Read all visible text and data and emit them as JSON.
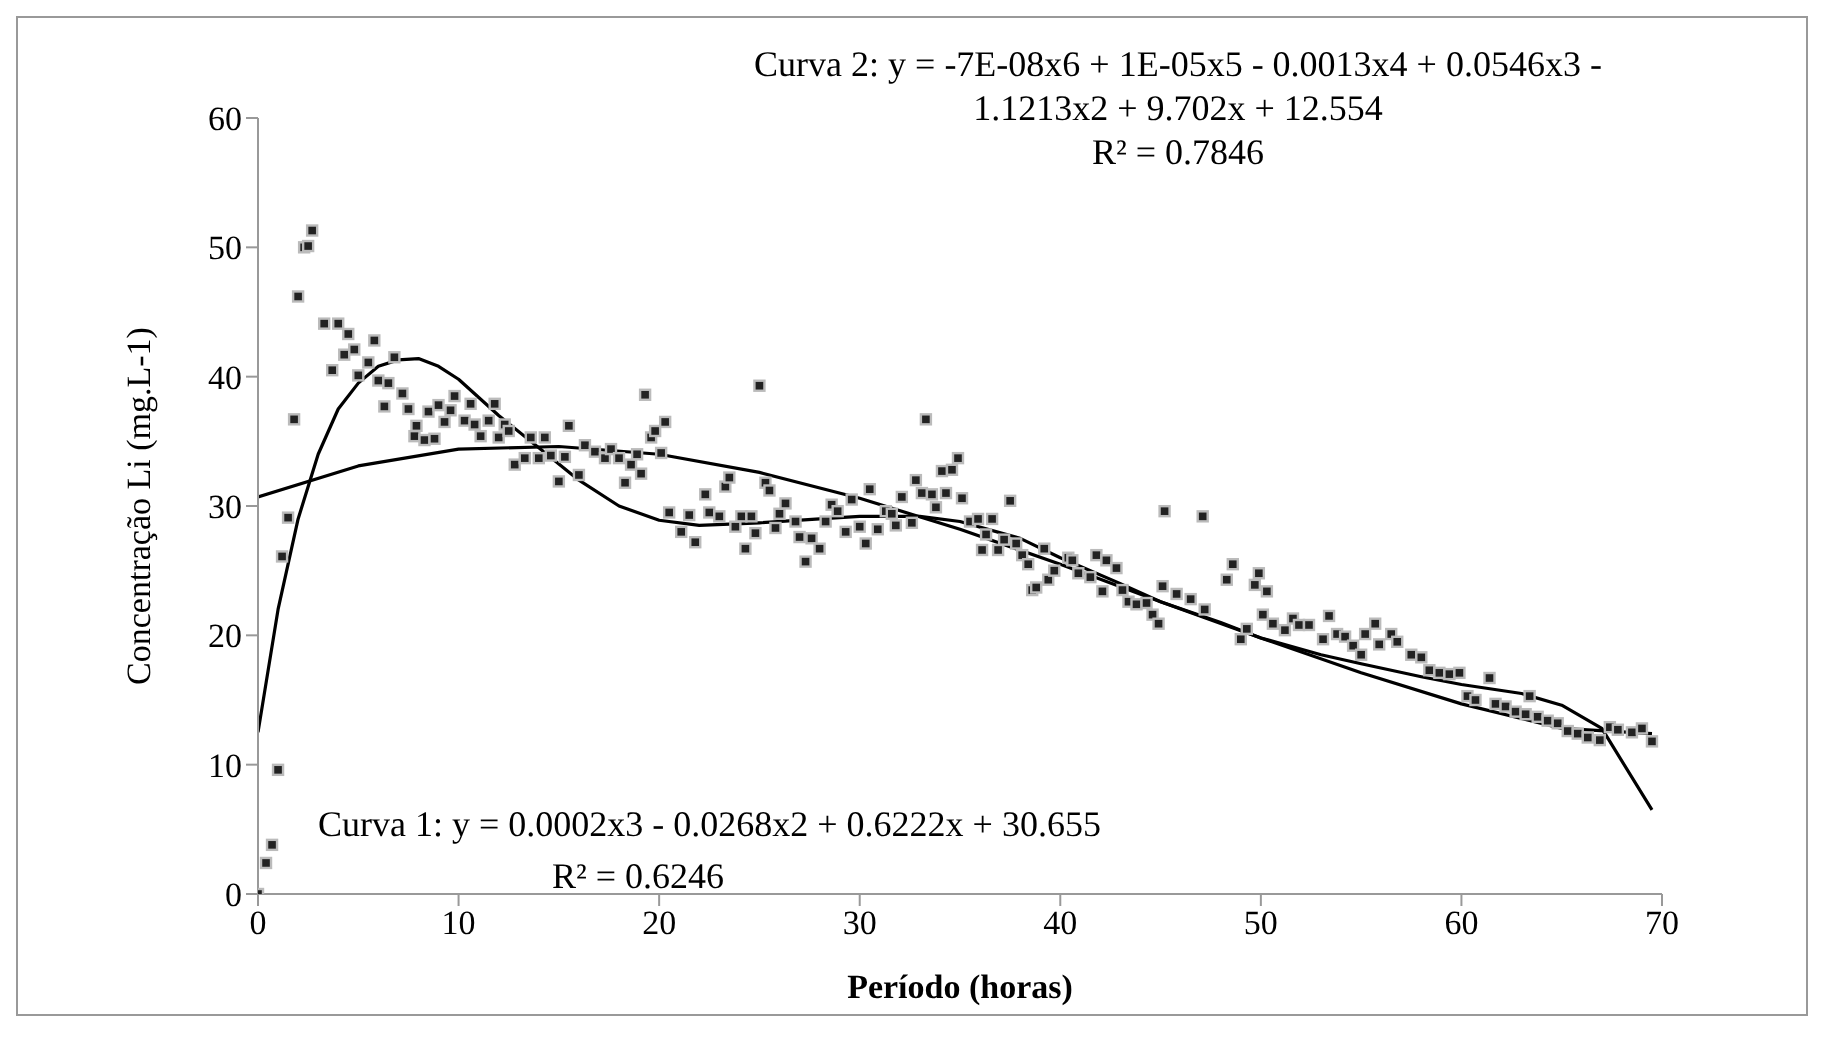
{
  "chart_data": {
    "type": "scatter",
    "xlabel": "Período (horas)",
    "ylabel": "Concentração Li (mg.L-1)",
    "xlim": [
      0,
      70
    ],
    "xticks": [
      0,
      10,
      20,
      30,
      40,
      50,
      60,
      70
    ],
    "ylim": [
      0,
      60
    ],
    "yticks": [
      0,
      10,
      20,
      30,
      40,
      50,
      60
    ],
    "grid": false,
    "legend": false,
    "annotations": [
      "Curva 2: y = -7E-08x6 + 1E-05x5 - 0.0013x4 + 0.0546x3 - 1.1213x2 + 9.702x + 12.554",
      "R² = 0.7846",
      "Curva 1: y = 0.0002x3 - 0.0268x2 + 0.6222x + 30.655",
      "R² = 0.6246"
    ],
    "series": [
      {
        "marker": "square",
        "color": "#222222",
        "x": [
          0,
          0.4,
          0.7,
          1.0,
          1.2,
          1.5,
          1.8,
          2.0,
          2.3,
          2.5,
          2.7,
          3.3,
          4.0,
          3.7,
          4.3,
          4.5,
          4.8,
          5.0,
          5.5,
          5.8,
          6.0,
          6.3,
          6.5,
          6.8,
          7.2,
          7.5,
          7.8,
          7.9,
          8.3,
          8.5,
          8.8,
          9.0,
          9.3,
          9.6,
          9.8,
          10.3,
          10.6,
          10.8,
          11.1,
          11.5,
          11.8,
          12.0,
          12.3,
          12.5,
          12.8,
          13.3,
          13.6,
          14.0,
          14.3,
          14.6,
          15.0,
          15.3,
          15.5,
          16.0,
          16.3,
          16.8,
          17.3,
          17.6,
          18.0,
          18.3,
          18.6,
          18.9,
          19.1,
          19.3,
          19.6,
          19.8,
          20.3,
          20.1,
          20.5,
          21.1,
          21.5,
          21.8,
          22.3,
          22.5,
          23.0,
          23.3,
          23.5,
          23.8,
          24.1,
          24.3,
          24.6,
          24.8,
          25.0,
          25.3,
          25.5,
          25.8,
          26.0,
          26.3,
          26.8,
          27.0,
          27.3,
          27.6,
          28.0,
          28.3,
          28.6,
          28.9,
          29.3,
          29.6,
          30.0,
          30.3,
          30.5,
          30.9,
          31.3,
          31.6,
          31.8,
          32.1,
          32.6,
          32.8,
          33.1,
          33.3,
          33.6,
          33.8,
          34.1,
          34.3,
          34.6,
          34.9,
          35.1,
          35.5,
          35.9,
          36.1,
          36.3,
          36.6,
          36.9,
          37.2,
          37.5,
          37.8,
          38.1,
          38.4,
          38.6,
          38.8,
          39.2,
          39.4,
          39.7,
          40.4,
          40.6,
          40.9,
          41.5,
          41.8,
          42.1,
          42.3,
          42.8,
          43.1,
          43.4,
          43.8,
          44.3,
          44.6,
          44.9,
          45.1,
          45.2,
          45.8,
          46.5,
          47.1,
          47.2,
          48.3,
          48.6,
          49.0,
          49.3,
          49.7,
          49.9,
          50.1,
          50.3,
          50.6,
          51.2,
          51.6,
          51.9,
          52.4,
          53.1,
          53.4,
          53.8,
          54.2,
          54.6,
          55.0,
          55.2,
          55.7,
          55.9,
          56.5,
          56.8,
          57.5,
          58.0,
          58.4,
          58.9,
          59.4,
          59.9,
          60.3,
          60.7,
          61.4,
          61.7,
          62.2,
          62.7,
          63.2,
          63.4,
          63.8,
          64.3,
          64.8,
          65.3,
          65.8,
          66.3,
          66.9,
          67.4,
          67.8,
          68.5,
          69.0,
          69.5
        ],
        "values": [
          0,
          2.4,
          3.8,
          9.6,
          26.1,
          29.1,
          36.7,
          46.2,
          50,
          50.1,
          51.3,
          44.1,
          44.1,
          40.5,
          41.7,
          43.3,
          42.1,
          40.1,
          41.1,
          42.8,
          39.7,
          37.7,
          39.5,
          41.5,
          38.7,
          37.5,
          35.4,
          36.2,
          35.1,
          37.3,
          35.2,
          37.8,
          36.5,
          37.4,
          38.5,
          36.6,
          37.9,
          36.3,
          35.4,
          36.6,
          37.9,
          35.3,
          36.3,
          35.8,
          33.2,
          33.7,
          35.3,
          33.7,
          35.3,
          33.9,
          31.9,
          33.8,
          36.2,
          32.4,
          34.7,
          34.2,
          33.7,
          34.4,
          33.7,
          31.8,
          33.2,
          34.0,
          32.5,
          38.6,
          35.3,
          35.8,
          36.5,
          34.1,
          29.5,
          28.0,
          29.3,
          27.2,
          30.9,
          29.5,
          29.2,
          31.5,
          32.2,
          28.4,
          29.2,
          26.7,
          29.2,
          27.9,
          39.3,
          31.8,
          31.2,
          28.3,
          29.4,
          30.2,
          28.8,
          27.6,
          25.7,
          27.5,
          26.7,
          28.8,
          30.1,
          29.6,
          28.0,
          30.5,
          28.4,
          27.1,
          31.3,
          28.2,
          29.6,
          29.4,
          28.5,
          30.7,
          28.7,
          32.0,
          31.0,
          36.7,
          30.9,
          29.9,
          32.7,
          31.0,
          32.8,
          33.7,
          30.6,
          28.8,
          29.0,
          26.6,
          27.8,
          29.0,
          26.6,
          27.4,
          30.4,
          27.1,
          26.2,
          25.5,
          23.5,
          23.7,
          26.7,
          24.3,
          25.0,
          26.0,
          25.8,
          24.8,
          24.5,
          26.2,
          23.4,
          25.8,
          25.2,
          23.5,
          22.6,
          22.4,
          22.5,
          21.6,
          20.9,
          23.8,
          29.6,
          23.2,
          22.8,
          29.2,
          22.0,
          24.3,
          25.5,
          19.7,
          20.5,
          23.9,
          24.8,
          21.6,
          23.4,
          20.9,
          20.4,
          21.3,
          20.8,
          20.8,
          19.7,
          21.5,
          20.1,
          19.9,
          19.2,
          18.5,
          20.1,
          20.9,
          19.3,
          20.1,
          19.5,
          18.5,
          18.3,
          17.3,
          17.1,
          17.0,
          17.1,
          15.3,
          15.0,
          16.7,
          14.7,
          14.5,
          14.1,
          13.9,
          15.3,
          13.7,
          13.4,
          13.2,
          12.6,
          12.4,
          12.1,
          11.9,
          12.9,
          12.7,
          12.5,
          12.8,
          11.8
        ]
      },
      {
        "type": "line",
        "marker": "none",
        "color": "#000000",
        "x": [
          0,
          5,
          10,
          15,
          20,
          25,
          30,
          35,
          40,
          45,
          50,
          55,
          60,
          65,
          69.5
        ],
        "values": [
          30.7,
          33.1,
          34.4,
          34.6,
          34.0,
          32.6,
          30.6,
          28.2,
          25.5,
          22.6,
          19.8,
          17.1,
          14.7,
          12.8,
          12.4
        ]
      },
      {
        "type": "line",
        "marker": "none",
        "color": "#000000",
        "x": [
          0,
          1,
          2,
          3,
          4,
          5,
          6,
          7,
          8,
          9,
          10,
          12,
          14,
          16,
          18,
          20,
          22,
          25,
          28,
          30,
          33,
          35,
          38,
          40,
          43,
          45,
          48,
          50,
          53,
          55,
          58,
          60,
          63,
          65,
          67,
          69.5
        ],
        "values": [
          12.5,
          22,
          29,
          34,
          37.5,
          39.5,
          40.8,
          41.3,
          41.4,
          40.8,
          39.8,
          37,
          34.5,
          32,
          30,
          28.9,
          28.5,
          28.7,
          29.0,
          29.2,
          29.2,
          28.8,
          27.5,
          26.0,
          24.0,
          22.6,
          21.0,
          19.8,
          18.5,
          17.8,
          16.8,
          16.2,
          15.5,
          14.6,
          12.8,
          6.5
        ]
      }
    ]
  }
}
